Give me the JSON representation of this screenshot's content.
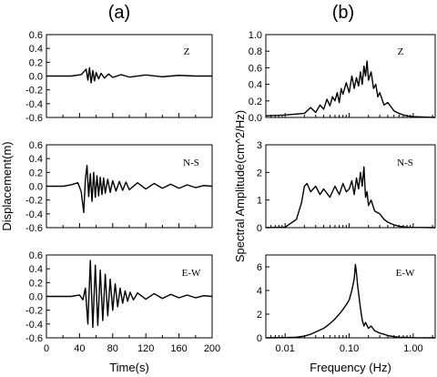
{
  "figure": {
    "panel_a_title": "(a)",
    "panel_b_title": "(b)"
  },
  "chart_data": [
    {
      "type": "line",
      "panel": "(a)",
      "component": "Z",
      "xlim": [
        0,
        200
      ],
      "ylim": [
        -0.6,
        0.6
      ],
      "yticks": [
        "0.6",
        "0.4",
        "0.2",
        "0.0",
        "-0.2",
        "-0.4",
        "-0.6"
      ],
      "xlabel": "",
      "ylabel": "",
      "series": [
        {
          "x": [
            0,
            30,
            42,
            45,
            48,
            50,
            52,
            54,
            56,
            58,
            60,
            63,
            66,
            70,
            75,
            80,
            90,
            100,
            120,
            140,
            160,
            180,
            200
          ],
          "y": [
            0,
            0.0,
            0.02,
            0.06,
            0.1,
            -0.06,
            0.12,
            -0.1,
            0.08,
            -0.07,
            0.05,
            -0.04,
            0.04,
            -0.03,
            0.03,
            -0.02,
            0.02,
            -0.015,
            0.015,
            -0.01,
            0.01,
            0.0,
            0.0
          ]
        }
      ]
    },
    {
      "type": "line",
      "panel": "(a)",
      "component": "N-S",
      "xlim": [
        0,
        200
      ],
      "ylim": [
        -0.6,
        0.6
      ],
      "yticks": [
        "0.6",
        "0.4",
        "0.2",
        "0.0",
        "-0.2",
        "-0.4",
        "-0.6"
      ],
      "xlabel": "",
      "ylabel": "Displacement(m)",
      "series": [
        {
          "x": [
            0,
            20,
            30,
            38,
            42,
            45,
            47,
            49,
            51,
            53,
            55,
            57,
            59,
            61,
            63,
            65,
            67,
            69,
            71,
            74,
            77,
            80,
            84,
            88,
            92,
            96,
            100,
            110,
            120,
            130,
            140,
            150,
            160,
            170,
            180,
            190,
            200
          ],
          "y": [
            0,
            0.0,
            0.02,
            0.05,
            -0.08,
            -0.38,
            0.1,
            0.3,
            -0.15,
            0.18,
            -0.22,
            0.2,
            -0.16,
            0.15,
            -0.14,
            0.13,
            -0.12,
            0.12,
            -0.1,
            0.1,
            -0.09,
            0.08,
            -0.07,
            0.07,
            -0.06,
            0.06,
            -0.05,
            0.05,
            -0.04,
            0.04,
            -0.03,
            0.03,
            -0.03,
            0.02,
            -0.02,
            0.01,
            0.0
          ]
        }
      ]
    },
    {
      "type": "line",
      "panel": "(a)",
      "component": "E-W",
      "xlim": [
        0,
        200
      ],
      "ylim": [
        -0.6,
        0.6
      ],
      "xticks": [
        "0",
        "40",
        "80",
        "120",
        "160",
        "200"
      ],
      "yticks": [
        "0.6",
        "0.4",
        "0.2",
        "0.0",
        "-0.2",
        "-0.4",
        "-0.6"
      ],
      "xlabel": "Time(s)",
      "ylabel": "",
      "series": [
        {
          "x": [
            0,
            30,
            40,
            44,
            47,
            50,
            53,
            56,
            59,
            62,
            65,
            68,
            71,
            74,
            77,
            80,
            83,
            86,
            89,
            92,
            95,
            98,
            101,
            105,
            110,
            120,
            130,
            140,
            150,
            160,
            170,
            180,
            190,
            200
          ],
          "y": [
            0,
            0.0,
            0.02,
            -0.05,
            0.12,
            -0.4,
            0.52,
            -0.45,
            0.45,
            -0.42,
            0.38,
            -0.35,
            0.32,
            -0.28,
            0.25,
            -0.2,
            0.18,
            -0.15,
            0.12,
            -0.1,
            0.08,
            -0.07,
            0.06,
            -0.05,
            0.05,
            -0.04,
            0.04,
            -0.03,
            0.03,
            -0.02,
            0.02,
            -0.02,
            0.01,
            0.0
          ]
        }
      ]
    },
    {
      "type": "line",
      "panel": "(b)",
      "component": "Z",
      "xscale": "log",
      "xlim": [
        0.005,
        2.2
      ],
      "ylim": [
        0,
        1.0
      ],
      "yticks": [
        "1.0",
        "0.8",
        "0.6",
        "0.4",
        "0.2",
        "0.0"
      ],
      "xlabel": "",
      "ylabel": "",
      "series": [
        {
          "x": [
            0.005,
            0.01,
            0.02,
            0.025,
            0.03,
            0.035,
            0.04,
            0.045,
            0.05,
            0.055,
            0.06,
            0.065,
            0.07,
            0.075,
            0.08,
            0.09,
            0.1,
            0.11,
            0.12,
            0.13,
            0.14,
            0.15,
            0.16,
            0.17,
            0.18,
            0.19,
            0.2,
            0.22,
            0.24,
            0.26,
            0.28,
            0.3,
            0.35,
            0.4,
            0.5,
            0.6,
            0.7,
            0.8,
            1.0,
            2.2
          ],
          "y": [
            0.02,
            0.03,
            0.05,
            0.12,
            0.06,
            0.15,
            0.1,
            0.22,
            0.14,
            0.25,
            0.2,
            0.3,
            0.18,
            0.35,
            0.28,
            0.42,
            0.3,
            0.5,
            0.35,
            0.48,
            0.38,
            0.55,
            0.4,
            0.62,
            0.5,
            0.68,
            0.45,
            0.55,
            0.35,
            0.4,
            0.25,
            0.3,
            0.15,
            0.18,
            0.08,
            0.05,
            0.03,
            0.02,
            0.01,
            0.0
          ]
        }
      ]
    },
    {
      "type": "line",
      "panel": "(b)",
      "component": "N-S",
      "xscale": "log",
      "xlim": [
        0.005,
        2.2
      ],
      "ylim": [
        0,
        3
      ],
      "yticks": [
        "3",
        "2",
        "1",
        "0"
      ],
      "xlabel": "",
      "ylabel": "Spectral Amplitude(cm^2/Hz)",
      "series": [
        {
          "x": [
            0.005,
            0.01,
            0.015,
            0.018,
            0.02,
            0.022,
            0.025,
            0.03,
            0.035,
            0.04,
            0.05,
            0.06,
            0.07,
            0.08,
            0.09,
            0.1,
            0.11,
            0.12,
            0.13,
            0.14,
            0.15,
            0.16,
            0.17,
            0.18,
            0.19,
            0.2,
            0.22,
            0.25,
            0.3,
            0.35,
            0.4,
            0.5,
            0.6,
            0.7,
            0.8,
            1.0,
            2.2
          ],
          "y": [
            0.0,
            0.02,
            0.3,
            0.9,
            1.5,
            1.6,
            1.3,
            1.5,
            1.2,
            1.4,
            1.1,
            1.5,
            1.2,
            1.6,
            1.3,
            1.4,
            1.7,
            1.2,
            1.8,
            1.4,
            2.0,
            1.5,
            2.2,
            1.1,
            1.3,
            0.8,
            1.0,
            0.6,
            0.5,
            0.3,
            0.2,
            0.1,
            0.05,
            0.03,
            0.02,
            0.01,
            0.0
          ]
        }
      ]
    },
    {
      "type": "line",
      "panel": "(b)",
      "component": "E-W",
      "xscale": "log",
      "xlim": [
        0.005,
        2.2
      ],
      "ylim": [
        0,
        7
      ],
      "xticks": [
        "0.01",
        "0.10",
        "1.00"
      ],
      "yticks": [
        "6",
        "4",
        "2",
        "0"
      ],
      "xlabel": "Frequency (Hz)",
      "ylabel": "",
      "series": [
        {
          "x": [
            0.005,
            0.01,
            0.015,
            0.02,
            0.025,
            0.03,
            0.04,
            0.05,
            0.06,
            0.07,
            0.08,
            0.09,
            0.1,
            0.11,
            0.12,
            0.125,
            0.13,
            0.135,
            0.14,
            0.15,
            0.16,
            0.17,
            0.18,
            0.2,
            0.22,
            0.25,
            0.3,
            0.35,
            0.4,
            0.5,
            0.6,
            0.8,
            1.0,
            2.2
          ],
          "y": [
            0.0,
            0.02,
            0.05,
            0.15,
            0.3,
            0.5,
            0.8,
            1.2,
            1.6,
            2.0,
            2.4,
            2.8,
            3.2,
            4.0,
            5.0,
            6.2,
            5.5,
            4.5,
            3.8,
            2.5,
            1.5,
            1.0,
            1.3,
            0.8,
            1.0,
            0.6,
            0.4,
            0.3,
            0.2,
            0.1,
            0.05,
            0.03,
            0.01,
            0.0
          ]
        }
      ]
    }
  ]
}
